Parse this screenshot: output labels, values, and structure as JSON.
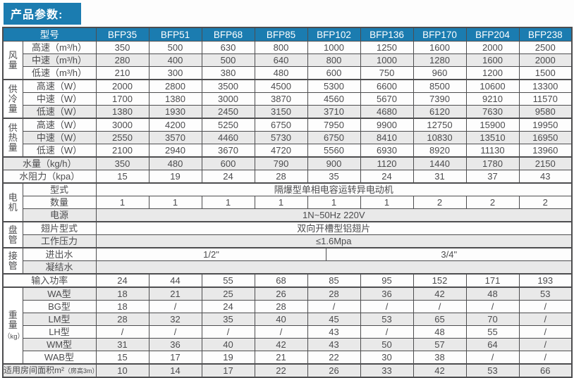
{
  "title": "产品参数:",
  "colors": {
    "accent_blue": "#1b7cb0",
    "row_shade_grey": "#e9e9e9",
    "border_grey": "#4d4d4f",
    "header_text": "#ffffff"
  },
  "table": {
    "model_header": "型号",
    "models": [
      "BFP35",
      "BFP51",
      "BFP68",
      "BFP85",
      "BFP102",
      "BFP136",
      "BFP170",
      "BFP204",
      "BFP238"
    ],
    "rows": [
      {
        "type": "data",
        "group": {
          "text": "风量",
          "rows": 3
        },
        "label": "高速（m³/h）",
        "values": [
          "350",
          "500",
          "630",
          "800",
          "1000",
          "1250",
          "1600",
          "2000",
          "2500"
        ]
      },
      {
        "type": "data",
        "label": "中速（m³/h）",
        "shade": true,
        "values": [
          "280",
          "400",
          "500",
          "640",
          "800",
          "1000",
          "1280",
          "1600",
          "2000"
        ]
      },
      {
        "type": "data",
        "label": "低速（m³/h）",
        "values": [
          "210",
          "300",
          "380",
          "480",
          "600",
          "750",
          "960",
          "1200",
          "1500"
        ]
      },
      {
        "type": "data",
        "top": true,
        "group": {
          "text": "供冷量",
          "rows": 3
        },
        "label": "高速（W）",
        "values": [
          "2000",
          "2800",
          "3500",
          "4500",
          "5300",
          "6600",
          "8500",
          "10600",
          "13300"
        ]
      },
      {
        "type": "data",
        "label": "中速（W）",
        "values": [
          "1700",
          "1380",
          "3000",
          "3870",
          "4560",
          "5670",
          "7390",
          "9210",
          "11570"
        ]
      },
      {
        "type": "data",
        "label": "低速（W）",
        "shade": true,
        "values": [
          "1380",
          "1930",
          "2450",
          "3150",
          "3710",
          "4680",
          "6120",
          "7630",
          "9580"
        ]
      },
      {
        "type": "data",
        "top": true,
        "group": {
          "text": "供热量",
          "rows": 3
        },
        "label": "高速（W）",
        "values": [
          "3000",
          "4200",
          "5250",
          "6750",
          "7950",
          "9900",
          "12750",
          "15900",
          "19950"
        ]
      },
      {
        "type": "data",
        "label": "中速（W）",
        "shade": true,
        "values": [
          "2550",
          "3570",
          "4460",
          "5730",
          "6750",
          "8410",
          "10830",
          "13510",
          "16950"
        ]
      },
      {
        "type": "data",
        "label": "低速（W）",
        "values": [
          "2100",
          "2940",
          "3670",
          "4720",
          "5560",
          "6930",
          "8920",
          "11130",
          "13960"
        ]
      },
      {
        "type": "data",
        "top": true,
        "wide": true,
        "label": "水量（kg/h）",
        "shade": true,
        "values": [
          "350",
          "480",
          "600",
          "790",
          "900",
          "1120",
          "1440",
          "1780",
          "2150"
        ]
      },
      {
        "type": "data",
        "wide": true,
        "label": "水阻力（kpa）",
        "values": [
          "15",
          "19",
          "24",
          "28",
          "35",
          "24",
          "31",
          "37",
          "43"
        ]
      },
      {
        "type": "span",
        "top": true,
        "group": {
          "text": "电机",
          "rows": 3
        },
        "label": "型式",
        "value": "隔爆型单相电容运转异电动机"
      },
      {
        "type": "data",
        "label": "数量",
        "values": [
          "1",
          "1",
          "1",
          "1",
          "1",
          "1",
          "2",
          "2",
          "2"
        ]
      },
      {
        "type": "span",
        "label": "电源",
        "shade": true,
        "value": "1N~50Hz  220V"
      },
      {
        "type": "span",
        "top": true,
        "group": {
          "text": "盘管",
          "rows": 2
        },
        "label": "翅片型式",
        "value": "双向开槽型铝翅片"
      },
      {
        "type": "span",
        "label": "工作压力",
        "shade": true,
        "value": "≤1.6Mpa"
      },
      {
        "type": "split",
        "top": true,
        "group": {
          "text": "接管",
          "rows": 2
        },
        "label": "进出水",
        "left": "1/2\"",
        "right": "3/4\"",
        "left_pct": 48.4
      },
      {
        "type": "span",
        "label": "凝结水",
        "shade": true,
        "value": ""
      },
      {
        "type": "data",
        "top": true,
        "wide": true,
        "label": "输入功率",
        "values": [
          "24",
          "44",
          "55",
          "68",
          "85",
          "95",
          "152",
          "171",
          "193"
        ]
      },
      {
        "type": "data",
        "top": true,
        "group": {
          "text": "重量",
          "rows": 6,
          "sub": "（kg）"
        },
        "label": "WA型",
        "shade": true,
        "values": [
          "18",
          "21",
          "25",
          "26",
          "28",
          "36",
          "42",
          "48",
          "53"
        ]
      },
      {
        "type": "data",
        "label": "BG型",
        "values": [
          "18",
          "/",
          "24",
          "28",
          "/",
          "/",
          "/",
          "/",
          "/"
        ]
      },
      {
        "type": "data",
        "label": "LM型",
        "shade": true,
        "values": [
          "28",
          "32",
          "35",
          "40",
          "45",
          "53",
          "65",
          "70",
          "/"
        ]
      },
      {
        "type": "data",
        "label": "LH型",
        "values": [
          "/",
          "/",
          "/",
          "/",
          "43",
          "/",
          "48",
          "55",
          "/"
        ]
      },
      {
        "type": "data",
        "label": "WM型",
        "shade": true,
        "values": [
          "31",
          "36",
          "40",
          "42",
          "43",
          "50",
          "57",
          "64",
          "/"
        ]
      },
      {
        "type": "data",
        "label": "WAB型",
        "values": [
          "15",
          "17",
          "19",
          "21",
          "22",
          "30",
          "38",
          "/",
          "/"
        ]
      },
      {
        "type": "data",
        "top": true,
        "wide": true,
        "tight": true,
        "label": "适用房间面积m²",
        "label_small": "（房高3m）",
        "shade": true,
        "values": [
          "10",
          "14",
          "17",
          "22",
          "26",
          "33",
          "42",
          "53",
          "66"
        ]
      }
    ]
  }
}
